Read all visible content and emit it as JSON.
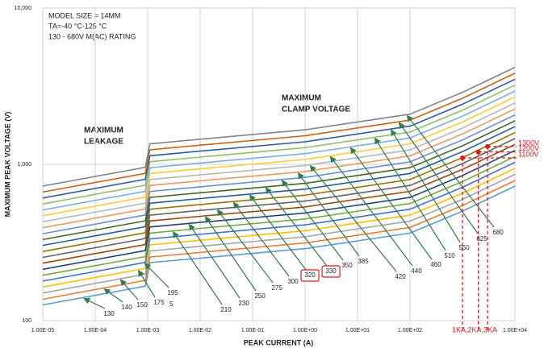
{
  "chart_data": {
    "type": "line",
    "info_lines": [
      "MODEL SIZE = 14MM",
      "TA=-40 °C-125 °C",
      "130 - 680V M(AC) RATING"
    ],
    "annotations": [
      "MAXIMUM",
      "LEAKAGE",
      "MAXIMUM",
      "CLAMP VOLTAGE",
      "5"
    ],
    "x_label": "PEAK CURRENT (A)",
    "y_label": "MAXIMUM PEAK VOLTAGE (V)",
    "log_x": true,
    "log_y": true,
    "grid": true,
    "xlim": [
      1e-05,
      10000
    ],
    "ylim": [
      100,
      10000
    ],
    "xticks": [
      {
        "value": 1e-05,
        "label": "1.00E-05"
      },
      {
        "value": 0.0001,
        "label": "1.00E-04"
      },
      {
        "value": 0.001,
        "label": "1.00E-03"
      },
      {
        "value": 0.01,
        "label": "1.00E-02"
      },
      {
        "value": 0.1,
        "label": "1.00E-01"
      },
      {
        "value": 1,
        "label": "1.00E+00"
      },
      {
        "value": 10,
        "label": "1.00E+01"
      },
      {
        "value": 100,
        "label": "1.00E+02"
      },
      {
        "value": 10000,
        "label": "1.00E+04"
      }
    ],
    "yticks": [
      100,
      {
        "value": 1000,
        "label": "1,000"
      },
      {
        "value": 10000,
        "label": "10,000"
      }
    ],
    "x": [
      1e-05,
      0.0009,
      0.0011,
      0.01,
      1,
      100,
      1000,
      10000
    ],
    "series": [
      {
        "name": "130",
        "color": "#5b9bd5",
        "values": [
          126,
          166,
          235,
          251,
          289,
          363,
          502,
          725
        ]
      },
      {
        "name": "140",
        "color": "#ed7d31",
        "values": [
          137,
          181,
          255,
          273,
          314,
          395,
          545,
          788
        ]
      },
      {
        "name": "150",
        "color": "#a5a5a5",
        "values": [
          150,
          198,
          279,
          299,
          344,
          433,
          597,
          863
        ]
      },
      {
        "name": "175",
        "color": "#ffc000",
        "values": [
          164,
          216,
          305,
          327,
          376,
          473,
          653,
          944
        ]
      },
      {
        "name": "195",
        "color": "#4472c4",
        "values": [
          179,
          236,
          333,
          357,
          410,
          516,
          713,
          1030
        ]
      },
      {
        "name": "210",
        "color": "#70ad47",
        "values": [
          195,
          257,
          363,
          389,
          447,
          562,
          776,
          1122
        ]
      },
      {
        "name": "230",
        "color": "#264478",
        "values": [
          213,
          281,
          397,
          425,
          488,
          614,
          848,
          1226
        ]
      },
      {
        "name": "250",
        "color": "#9e480e",
        "values": [
          233,
          307,
          434,
          465,
          534,
          672,
          928,
          1341
        ]
      },
      {
        "name": "275",
        "color": "#636363",
        "values": [
          254,
          335,
          473,
          507,
          582,
          733,
          1011,
          1462
        ]
      },
      {
        "name": "300",
        "color": "#997300",
        "values": [
          277,
          365,
          516,
          553,
          635,
          799,
          1103,
          1594
        ]
      },
      {
        "name": "320",
        "color": "#255e91",
        "values": [
          303,
          399,
          564,
          604,
          694,
          874,
          1206,
          1743
        ]
      },
      {
        "name": "330",
        "color": "#43682b",
        "values": [
          330,
          435,
          614,
          658,
          756,
          952,
          1314,
          1899
        ]
      },
      {
        "name": "350",
        "color": "#698ed0",
        "values": [
          360,
          474,
          670,
          718,
          825,
          1038,
          1433,
          2071
        ]
      },
      {
        "name": "385",
        "color": "#f1975a",
        "values": [
          393,
          518,
          732,
          784,
          900,
          1133,
          1565,
          2261
        ]
      },
      {
        "name": "420",
        "color": "#b7b7b7",
        "values": [
          429,
          565,
          799,
          856,
          983,
          1237,
          1708,
          2468
        ]
      },
      {
        "name": "440",
        "color": "#ffcd33",
        "values": [
          469,
          618,
          873,
          936,
          1074,
          1353,
          1867,
          2699
        ]
      },
      {
        "name": "460",
        "color": "#7cafdd",
        "values": [
          511,
          673,
          951,
          1019,
          1171,
          1474,
          2034,
          2940
        ]
      },
      {
        "name": "510",
        "color": "#8cc168",
        "values": [
          558,
          735,
          1039,
          1113,
          1278,
          1609,
          2221,
          3211
        ]
      },
      {
        "name": "550",
        "color": "#335aa1",
        "values": [
          609,
          803,
          1134,
          1215,
          1395,
          1756,
          2424,
          3504
        ]
      },
      {
        "name": "625",
        "color": "#d26012",
        "values": [
          665,
          876,
          1238,
          1327,
          1524,
          1918,
          2647,
          3826
        ]
      },
      {
        "name": "680",
        "color": "#848484",
        "values": [
          726,
          957,
          1352,
          1448,
          1663,
          2094,
          2890,
          4177
        ]
      }
    ],
    "boxed": [
      "320",
      "330"
    ],
    "markers": {
      "x": [
        1000,
        2000,
        3000
      ],
      "values": [
        1100,
        1200,
        1300
      ],
      "value_labels": [
        "1100V",
        "1200V",
        "1300V"
      ],
      "x_label": "1KA,2KA,3KA",
      "color": "#e8141c"
    },
    "arrow_color": "#2e7d4f"
  }
}
